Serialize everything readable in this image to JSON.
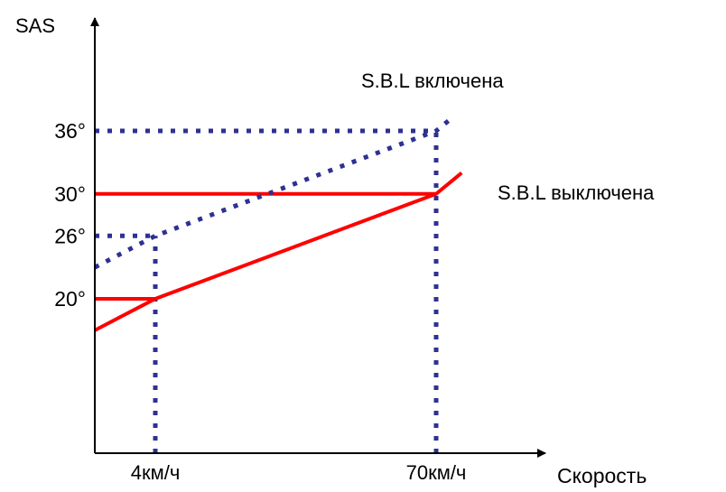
{
  "chart_data": {
    "type": "line",
    "ylabel": "SAS",
    "xlabel": "Скорость",
    "x_ticks": [
      {
        "label": "4км/ч",
        "value": 4
      },
      {
        "label": "70км/ч",
        "value": 70
      }
    ],
    "y_ticks": [
      {
        "label": "20°",
        "value": 20
      },
      {
        "label": "26°",
        "value": 26
      },
      {
        "label": "30°",
        "value": 30
      },
      {
        "label": "36°",
        "value": 36
      }
    ],
    "series": [
      {
        "name": "S.B.L включена",
        "style": "dotted",
        "color": "#2E3192",
        "points": [
          [
            0,
            23
          ],
          [
            4,
            26
          ],
          [
            70,
            36
          ],
          [
            73,
            37
          ]
        ]
      },
      {
        "name": "S.B.L выключена",
        "style": "solid",
        "color": "#FF0000",
        "points": [
          [
            0,
            17
          ],
          [
            4,
            20
          ],
          [
            70,
            30
          ],
          [
            76,
            32
          ]
        ]
      }
    ],
    "reference_lines": {
      "dotted_vertical_x": [
        4,
        70
      ],
      "dotted_horizontal_y": [
        26,
        36
      ],
      "solid_horizontal_y": [
        20,
        30
      ]
    },
    "grid": false,
    "legend": "inline labels"
  }
}
